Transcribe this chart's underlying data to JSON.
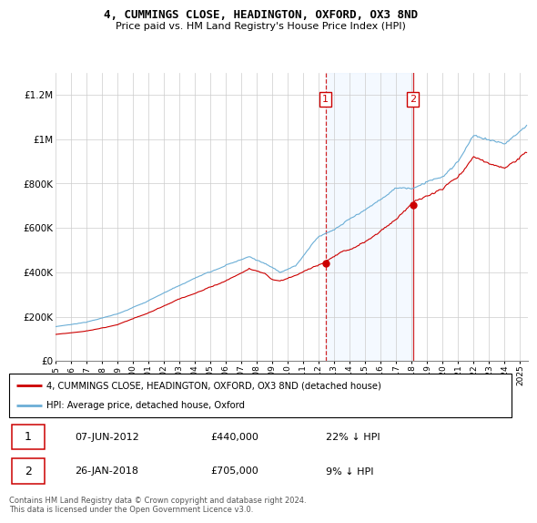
{
  "title": "4, CUMMINGS CLOSE, HEADINGTON, OXFORD, OX3 8ND",
  "subtitle": "Price paid vs. HM Land Registry's House Price Index (HPI)",
  "legend_line1": "4, CUMMINGS CLOSE, HEADINGTON, OXFORD, OX3 8ND (detached house)",
  "legend_line2": "HPI: Average price, detached house, Oxford",
  "transaction1_label": "1",
  "transaction1_date": "07-JUN-2012",
  "transaction1_price": "£440,000",
  "transaction1_hpi": "22% ↓ HPI",
  "transaction2_label": "2",
  "transaction2_date": "26-JAN-2018",
  "transaction2_price": "£705,000",
  "transaction2_hpi": "9% ↓ HPI",
  "footer": "Contains HM Land Registry data © Crown copyright and database right 2024.\nThis data is licensed under the Open Government Licence v3.0.",
  "hpi_color": "#6baed6",
  "price_color": "#cc0000",
  "vline_color": "#cc0000",
  "shade_color": "#ddeeff",
  "ylim": [
    0,
    1300000
  ],
  "yticks": [
    0,
    200000,
    400000,
    600000,
    800000,
    1000000,
    1200000
  ],
  "ytick_labels": [
    "£0",
    "£200K",
    "£400K",
    "£600K",
    "£800K",
    "£1M",
    "£1.2M"
  ],
  "transaction1_x": 2012.44,
  "transaction1_y": 440000,
  "transaction2_x": 2018.07,
  "transaction2_y": 705000,
  "xmin": 1995,
  "xmax": 2025.5
}
